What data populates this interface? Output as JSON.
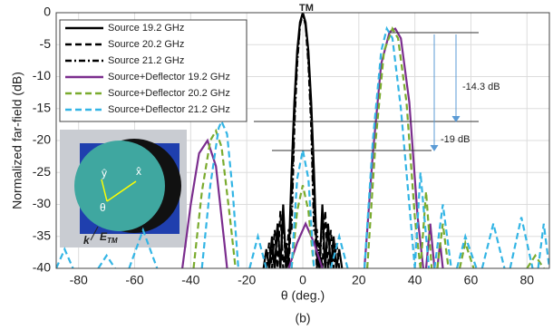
{
  "chart_data": {
    "type": "line",
    "xlabel": "θ (deg.)",
    "ylabel": "Normalized far-field (dB)",
    "caption": "(b)",
    "xlim": [
      -88,
      88
    ],
    "xticks": [
      -80,
      -60,
      -40,
      -20,
      0,
      20,
      40,
      60,
      80
    ],
    "ylim": [
      -40,
      0
    ],
    "yticks": [
      -40,
      -35,
      -30,
      -25,
      -20,
      -15,
      -10,
      -5,
      0
    ],
    "grid": true,
    "legend": "upper-left",
    "annotations": [
      "TM",
      "-14.3 dB",
      "-19 dB"
    ],
    "inset_labels": [
      "ŷ",
      "x̂",
      "θ",
      "k",
      "E",
      "TM"
    ],
    "series": [
      {
        "name": "Source 19.2 GHz",
        "color": "#000000",
        "dash": "solid",
        "x": [
          -14,
          -13,
          -12,
          -11,
          -10,
          -9,
          -8,
          -7,
          -6,
          -5,
          -4,
          -3,
          -2,
          -1,
          0,
          1,
          2,
          3,
          4,
          5,
          6,
          7,
          8,
          9,
          10,
          11,
          12,
          13,
          14
        ],
        "values": [
          -40,
          -37,
          -40,
          -35,
          -40,
          -33,
          -40,
          -30,
          -40,
          -38,
          -25,
          -14,
          -6,
          -1.5,
          0,
          -1.5,
          -6,
          -14,
          -25,
          -38,
          -40,
          -30,
          -40,
          -33,
          -40,
          -35,
          -40,
          -37,
          -40
        ]
      },
      {
        "name": "Source 20.2 GHz",
        "color": "#000000",
        "dash": "dashed",
        "x": [
          -13,
          -12,
          -11,
          -10,
          -9,
          -8,
          -7,
          -6,
          -5,
          -4,
          -3,
          -2,
          -1,
          0,
          1,
          2,
          3,
          4,
          5,
          6,
          7,
          8,
          9,
          10,
          11,
          12,
          13
        ],
        "values": [
          -40,
          -36,
          -40,
          -34,
          -40,
          -31,
          -40,
          -36,
          -40,
          -30,
          -16,
          -7,
          -2,
          0,
          -2,
          -7,
          -16,
          -30,
          -40,
          -36,
          -40,
          -31,
          -40,
          -34,
          -40,
          -36,
          -40
        ]
      },
      {
        "name": "Source 21.2 GHz",
        "color": "#000000",
        "dash": "dashdot",
        "x": [
          -12,
          -11,
          -10,
          -9,
          -8,
          -7,
          -6,
          -5,
          -4,
          -3,
          -2,
          -1,
          0,
          1,
          2,
          3,
          4,
          5,
          6,
          7,
          8,
          9,
          10,
          11,
          12
        ],
        "values": [
          -40,
          -37,
          -40,
          -33,
          -40,
          -32,
          -40,
          -34,
          -34,
          -18,
          -8,
          -2,
          0,
          -2,
          -8,
          -18,
          -34,
          -34,
          -40,
          -32,
          -40,
          -33,
          -40,
          -37,
          -40
        ]
      },
      {
        "name": "Source+Deflector 19.2 GHz",
        "color": "#7b2d8e",
        "dash": "solid",
        "x": [
          -43,
          -40,
          -37,
          -34,
          -31,
          -28,
          -27,
          null,
          -5,
          -2,
          1,
          4,
          7,
          null,
          22,
          25,
          28,
          31,
          33,
          35,
          38,
          41,
          43,
          null,
          44,
          45.5,
          47,
          null,
          48,
          49,
          50
        ],
        "values": [
          -40,
          -30,
          -22,
          -20,
          -24,
          -36,
          -40,
          null,
          -40,
          -36,
          -33,
          -36,
          -40,
          null,
          -40,
          -22,
          -8,
          -3,
          -2.5,
          -4,
          -14,
          -32,
          -40,
          null,
          -40,
          -33,
          -40,
          null,
          -40,
          -36,
          -40
        ]
      },
      {
        "name": "Source+Deflector 20.2 GHz",
        "color": "#7aab2e",
        "dash": "dashed",
        "x": [
          -39,
          -36,
          -33,
          -31,
          -29,
          -26,
          -24,
          null,
          -4,
          -2,
          0,
          2,
          4,
          null,
          23,
          26,
          29,
          32,
          34,
          37,
          40,
          42,
          null,
          42,
          44,
          46,
          null,
          48,
          50,
          52,
          null,
          56,
          58,
          61,
          null,
          80,
          83,
          86
        ],
        "values": [
          -40,
          -28,
          -20,
          -18.5,
          -21,
          -32,
          -40,
          null,
          -40,
          -31,
          -27,
          -31,
          -40,
          null,
          -40,
          -20,
          -6,
          -2.5,
          -4,
          -14,
          -32,
          -40,
          null,
          -40,
          -28,
          -40,
          null,
          -40,
          -33,
          -40,
          null,
          -40,
          -36,
          -40,
          null,
          -40,
          -38,
          -40
        ]
      },
      {
        "name": "Source+Deflector 21.2 GHz",
        "color": "#33b5e5",
        "dash": "dashed",
        "x": [
          -88,
          -85,
          -82,
          null,
          -73,
          -70,
          -67,
          null,
          -62,
          -57,
          -52,
          null,
          -36,
          -33,
          -30,
          -29,
          -27,
          -25,
          -23,
          null,
          -19,
          -16,
          -13,
          null,
          -4,
          -2,
          0,
          2,
          4,
          null,
          10,
          13,
          16,
          null,
          22,
          25,
          28,
          30,
          32,
          35,
          38,
          40,
          null,
          40,
          42,
          45,
          null,
          47,
          50,
          53,
          null,
          55,
          58,
          62,
          null,
          64,
          68,
          72,
          null,
          74,
          78,
          82,
          null,
          84,
          86,
          88
        ],
        "values": [
          -40,
          -37,
          -40,
          null,
          -40,
          -38,
          -40,
          null,
          -40,
          -34,
          -40,
          null,
          -40,
          -27,
          -18,
          -17,
          -19,
          -28,
          -40,
          null,
          -40,
          -35,
          -40,
          null,
          -40,
          -26,
          -21.5,
          -26,
          -40,
          null,
          -40,
          -35,
          -40,
          null,
          -40,
          -20,
          -6,
          -2.5,
          -4,
          -15,
          -30,
          -40,
          null,
          -40,
          -25,
          -40,
          null,
          -40,
          -30,
          -40,
          null,
          -40,
          -35,
          -40,
          null,
          -40,
          -33,
          -40,
          null,
          -40,
          -32,
          -40,
          null,
          -40,
          -33,
          -40
        ]
      }
    ]
  }
}
